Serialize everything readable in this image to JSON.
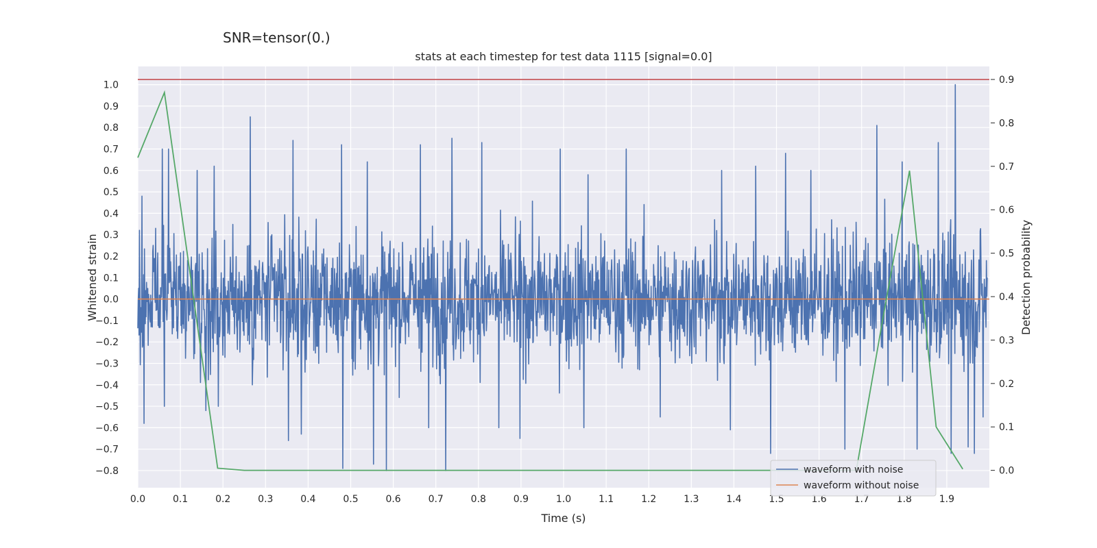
{
  "suptitle": "SNR=tensor(0.)",
  "colors": {
    "background": "#eaeaf2",
    "grid": "#ffffff",
    "noisy": "#4c72b0",
    "clean": "#dd8452",
    "probability": "#55a868",
    "threshold": "#c44e52"
  },
  "chart_data": {
    "type": "line",
    "title": "stats at each timestep for test data 1115 [signal=0.0]",
    "xlabel": "Time (s)",
    "ylabel": "Whitened strain",
    "y2label": "Detection probability",
    "xlim": [
      0,
      2
    ],
    "ylim": [
      -0.88,
      1.085
    ],
    "y2lim": [
      -0.04,
      0.93
    ],
    "grid": true,
    "legend_position": "lower-right",
    "xticks": [
      "0.0",
      "0.1",
      "0.2",
      "0.3",
      "0.4",
      "0.5",
      "0.6",
      "0.7",
      "0.8",
      "0.9",
      "1.0",
      "1.1",
      "1.2",
      "1.3",
      "1.4",
      "1.5",
      "1.6",
      "1.7",
      "1.8",
      "1.9"
    ],
    "yticks": [
      "1.0",
      "0.9",
      "0.8",
      "0.7",
      "0.6",
      "0.5",
      "0.4",
      "0.3",
      "0.2",
      "0.1",
      "0.0",
      "−0.1",
      "−0.2",
      "−0.3",
      "−0.4",
      "−0.5",
      "−0.6",
      "−0.7",
      "−0.8"
    ],
    "y2ticks": [
      "0.9",
      "0.8",
      "0.7",
      "0.6",
      "0.5",
      "0.4",
      "0.3",
      "0.2",
      "0.1",
      "0.0"
    ],
    "series": [
      {
        "name": "waveform with noise",
        "axis": "left",
        "noise_amplitude": 0.25,
        "peaks": [
          [
            0.01,
            0.48
          ],
          [
            0.015,
            -0.58
          ],
          [
            0.058,
            0.7
          ],
          [
            0.063,
            -0.5
          ],
          [
            0.072,
            0.7
          ],
          [
            0.14,
            0.6
          ],
          [
            0.16,
            -0.52
          ],
          [
            0.18,
            0.62
          ],
          [
            0.19,
            -0.5
          ],
          [
            0.265,
            0.85
          ],
          [
            0.27,
            -0.4
          ],
          [
            0.355,
            -0.66
          ],
          [
            0.365,
            0.74
          ],
          [
            0.385,
            -0.63
          ],
          [
            0.48,
            0.72
          ],
          [
            0.483,
            -0.79
          ],
          [
            0.54,
            0.64
          ],
          [
            0.555,
            -0.77
          ],
          [
            0.585,
            -0.8
          ],
          [
            0.665,
            0.72
          ],
          [
            0.685,
            -0.6
          ],
          [
            0.725,
            -0.8
          ],
          [
            0.74,
            0.75
          ],
          [
            0.81,
            0.73
          ],
          [
            0.85,
            -0.6
          ],
          [
            0.9,
            -0.65
          ],
          [
            0.995,
            0.7
          ],
          [
            1.05,
            -0.6
          ],
          [
            1.06,
            0.58
          ],
          [
            1.15,
            0.7
          ],
          [
            1.23,
            -0.55
          ],
          [
            1.375,
            0.6
          ],
          [
            1.395,
            -0.61
          ],
          [
            1.455,
            0.62
          ],
          [
            1.49,
            -0.72
          ],
          [
            1.525,
            0.68
          ],
          [
            1.585,
            0.6
          ],
          [
            1.665,
            -0.7
          ],
          [
            1.74,
            0.81
          ],
          [
            1.8,
            0.64
          ],
          [
            1.835,
            -0.7
          ],
          [
            1.885,
            0.73
          ],
          [
            1.915,
            -0.72
          ],
          [
            1.925,
            1.0
          ],
          [
            1.955,
            -0.69
          ],
          [
            1.97,
            -0.72
          ],
          [
            1.99,
            -0.55
          ]
        ]
      },
      {
        "name": "waveform without noise",
        "axis": "left",
        "x": [
          0,
          2
        ],
        "y": [
          0,
          0
        ]
      },
      {
        "name": "",
        "axis": "right",
        "x": [
          0,
          0.0625,
          0.1875,
          0.25,
          0.3125,
          0.375,
          0.4375,
          0.5,
          0.5625,
          0.625,
          0.6875,
          0.75,
          0.8125,
          0.875,
          0.9375,
          1.0,
          1.0625,
          1.125,
          1.1875,
          1.25,
          1.3125,
          1.375,
          1.4375,
          1.5,
          1.5625,
          1.625,
          1.6875,
          1.75,
          1.8125,
          1.875,
          1.9375
        ],
        "y": [
          0.72,
          0.87,
          0.005,
          0.0,
          0.0,
          0.0,
          0.0,
          0.0,
          0.0,
          0.0,
          0.0,
          0.0,
          0.0,
          0.0,
          0.0,
          0.0,
          0.0,
          0.0,
          0.0,
          0.0,
          0.0,
          0.0,
          0.0,
          0.0,
          0.0,
          0.0,
          0.0,
          0.35,
          0.69,
          0.1,
          0.003
        ]
      },
      {
        "name": "",
        "axis": "right",
        "x": [
          0,
          2
        ],
        "y": [
          0.9,
          0.9
        ]
      }
    ]
  }
}
